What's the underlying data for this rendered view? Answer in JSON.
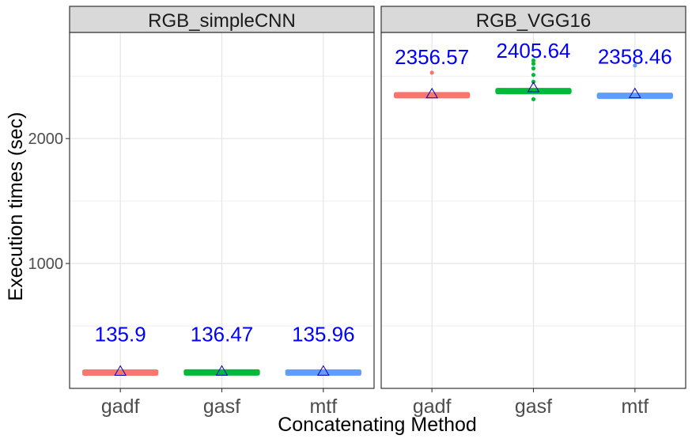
{
  "chart_data": {
    "type": "boxplot",
    "xlabel": "Concatenating Method",
    "ylabel": "Execution times (sec)",
    "ylim": [
      0,
      2850
    ],
    "y_ticks": [
      1000,
      2000
    ],
    "y_tick_labels": [
      "1000",
      "2000"
    ],
    "grid": true,
    "categories": [
      "gadf",
      "gasf",
      "mtf"
    ],
    "colors": {
      "gadf": "#F8766D",
      "gasf": "#00BA38",
      "mtf": "#619CFF",
      "mean_label": "#0000FF",
      "strip": "#D9D9D9"
    },
    "panels": [
      {
        "title": "RGB_simpleCNN",
        "series": [
          {
            "category": "gadf",
            "median": 136,
            "q1": 133,
            "q3": 139,
            "mean": 135.9,
            "mean_label": "135.9",
            "outliers": []
          },
          {
            "category": "gasf",
            "median": 136,
            "q1": 133,
            "q3": 140,
            "mean": 136.47,
            "mean_label": "136.47",
            "outliers": []
          },
          {
            "category": "mtf",
            "median": 136,
            "q1": 133,
            "q3": 139,
            "mean": 135.96,
            "mean_label": "135.96",
            "outliers": []
          }
        ]
      },
      {
        "title": "RGB_VGG16",
        "series": [
          {
            "category": "gadf",
            "median": 2348,
            "q1": 2335,
            "q3": 2360,
            "mean": 2356.57,
            "mean_label": "2356.57",
            "outliers": [
              2528
            ]
          },
          {
            "category": "gasf",
            "median": 2382,
            "q1": 2370,
            "q3": 2393,
            "mean": 2405.64,
            "mean_label": "2405.64",
            "outliers": [
              2315,
              2455,
              2510,
              2562,
              2600,
              2625
            ]
          },
          {
            "category": "mtf",
            "median": 2344,
            "q1": 2333,
            "q3": 2355,
            "mean": 2358.46,
            "mean_label": "2358.46",
            "outliers": [
              2585
            ]
          }
        ]
      }
    ]
  }
}
